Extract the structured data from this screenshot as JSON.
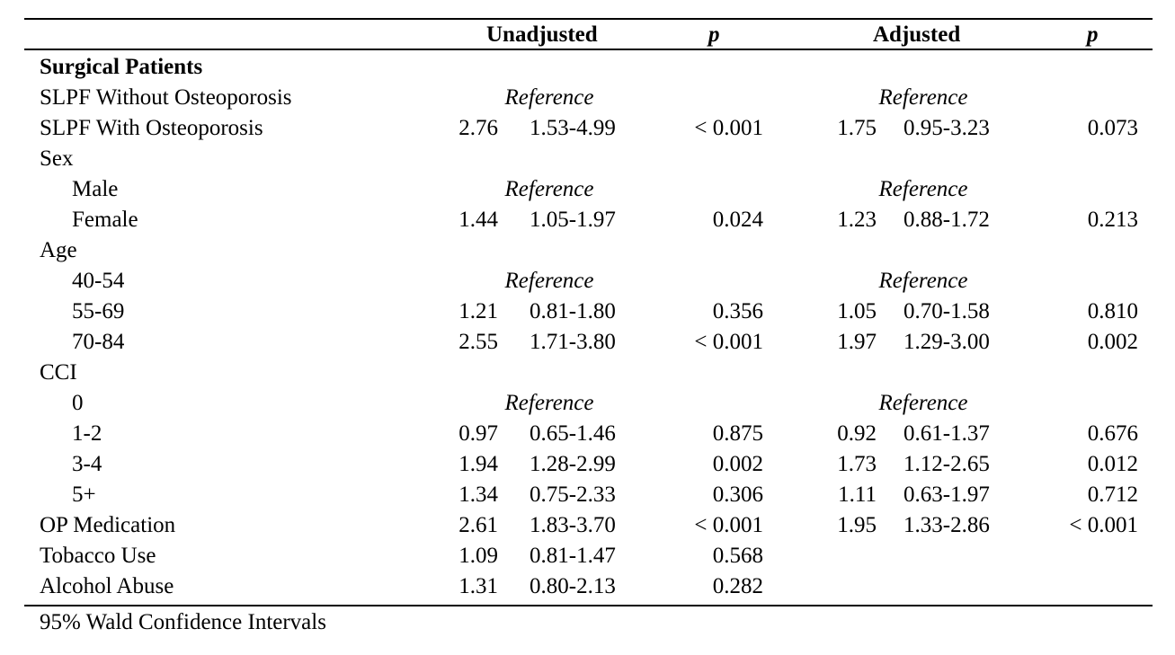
{
  "header": {
    "unadjusted": "Unadjusted",
    "p1": "p",
    "adjusted": "Adjusted",
    "p2": "p"
  },
  "rows": [
    {
      "label": "Surgical Patients",
      "bold": true,
      "indent": false
    },
    {
      "label": "SLPF Without Osteoporosis",
      "indent": false,
      "u_ref": "Reference",
      "a_ref": "Reference"
    },
    {
      "label": "SLPF With Osteoporosis",
      "indent": false,
      "u_or": "2.76",
      "u_ci": "1.53-4.99",
      "u_p": "< 0.001",
      "a_or": "1.75",
      "a_ci": "0.95-3.23",
      "a_p": "0.073"
    },
    {
      "label": "Sex",
      "indent": false
    },
    {
      "label": "Male",
      "indent": true,
      "u_ref": "Reference",
      "a_ref": "Reference"
    },
    {
      "label": "Female",
      "indent": true,
      "u_or": "1.44",
      "u_ci": "1.05-1.97",
      "u_p": "0.024",
      "a_or": "1.23",
      "a_ci": "0.88-1.72",
      "a_p": "0.213"
    },
    {
      "label": "Age",
      "indent": false
    },
    {
      "label": "40-54",
      "indent": true,
      "u_ref": "Reference",
      "a_ref": "Reference"
    },
    {
      "label": "55-69",
      "indent": true,
      "u_or": "1.21",
      "u_ci": "0.81-1.80",
      "u_p": "0.356",
      "a_or": "1.05",
      "a_ci": "0.70-1.58",
      "a_p": "0.810"
    },
    {
      "label": "70-84",
      "indent": true,
      "u_or": "2.55",
      "u_ci": "1.71-3.80",
      "u_p": "< 0.001",
      "a_or": "1.97",
      "a_ci": "1.29-3.00",
      "a_p": "0.002"
    },
    {
      "label": "CCI",
      "indent": false
    },
    {
      "label": "0",
      "indent": true,
      "u_ref": "Reference",
      "a_ref": "Reference"
    },
    {
      "label": "1-2",
      "indent": true,
      "u_or": "0.97",
      "u_ci": "0.65-1.46",
      "u_p": "0.875",
      "a_or": "0.92",
      "a_ci": "0.61-1.37",
      "a_p": "0.676"
    },
    {
      "label": "3-4",
      "indent": true,
      "u_or": "1.94",
      "u_ci": "1.28-2.99",
      "u_p": "0.002",
      "a_or": "1.73",
      "a_ci": "1.12-2.65",
      "a_p": "0.012"
    },
    {
      "label": "5+",
      "indent": true,
      "u_or": "1.34",
      "u_ci": "0.75-2.33",
      "u_p": "0.306",
      "a_or": "1.11",
      "a_ci": "0.63-1.97",
      "a_p": "0.712"
    },
    {
      "label": "OP Medication",
      "indent": false,
      "u_or": "2.61",
      "u_ci": "1.83-3.70",
      "u_p": "< 0.001",
      "a_or": "1.95",
      "a_ci": "1.33-2.86",
      "a_p": "< 0.001"
    },
    {
      "label": "Tobacco Use",
      "indent": false,
      "u_or": "1.09",
      "u_ci": "0.81-1.47",
      "u_p": "0.568"
    },
    {
      "label": "Alcohol Abuse",
      "indent": false,
      "u_or": "1.31",
      "u_ci": "0.80-2.13",
      "u_p": "0.282"
    }
  ],
  "footnote": "95% Wald Confidence Intervals"
}
